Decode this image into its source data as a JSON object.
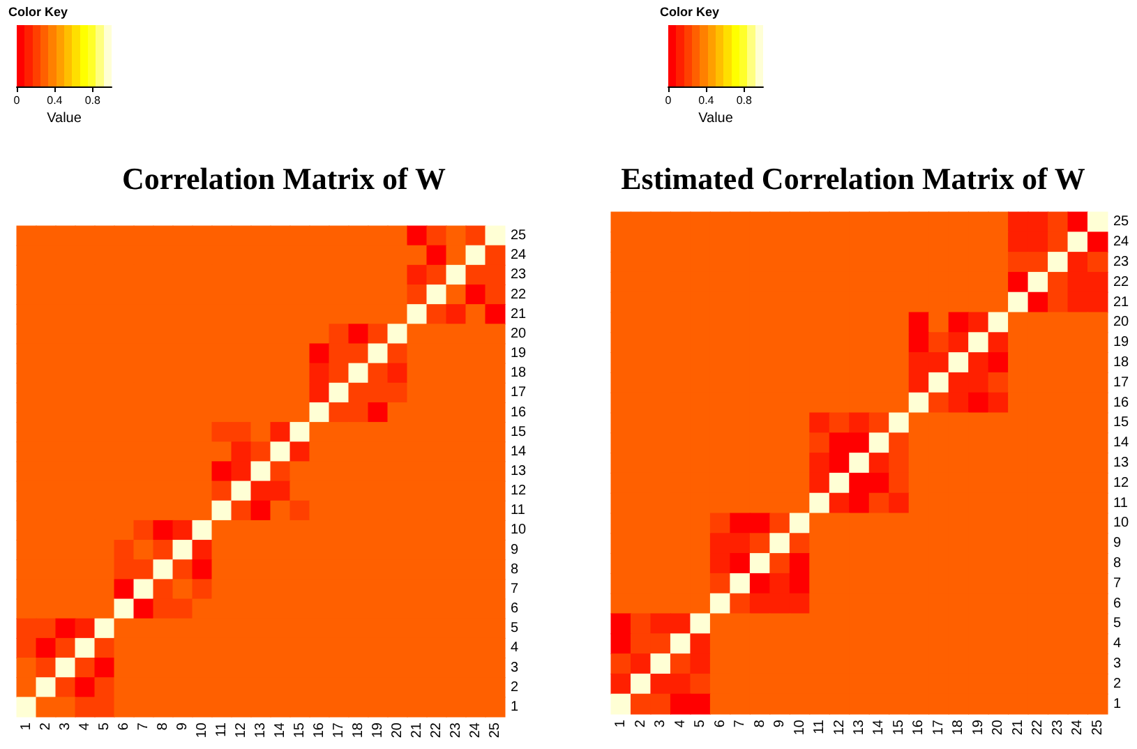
{
  "chart_data": [
    {
      "type": "heatmap",
      "title": "Correlation Matrix of W",
      "legend_title": "Color Key",
      "clabel": "Value",
      "clim": [
        0,
        1
      ],
      "cticks": [
        0,
        0.4,
        0.8
      ],
      "categories": [
        "1",
        "2",
        "3",
        "4",
        "5",
        "6",
        "7",
        "8",
        "9",
        "10",
        "11",
        "12",
        "13",
        "14",
        "15",
        "16",
        "17",
        "18",
        "19",
        "20",
        "21",
        "22",
        "23",
        "24",
        "25"
      ],
      "y_categories": [
        "25",
        "24",
        "23",
        "22",
        "21",
        "20",
        "19",
        "18",
        "17",
        "16",
        "15",
        "14",
        "13",
        "12",
        "11",
        "10",
        "9",
        "8",
        "7",
        "6",
        "5",
        "4",
        "3",
        "2",
        "1"
      ],
      "cells": [
        [
          0.3,
          0.3,
          0.3,
          0.3,
          0.3,
          0.3,
          0.3,
          0.3,
          0.3,
          0.3,
          0.3,
          0.3,
          0.3,
          0.3,
          0.3,
          0.3,
          0.3,
          0.3,
          0.3,
          0.3,
          0.04,
          0.2,
          0.3,
          0.2,
          1
        ],
        [
          0.3,
          0.3,
          0.3,
          0.3,
          0.3,
          0.3,
          0.3,
          0.3,
          0.3,
          0.3,
          0.3,
          0.3,
          0.3,
          0.3,
          0.3,
          0.3,
          0.3,
          0.3,
          0.3,
          0.3,
          0.3,
          0.04,
          0.3,
          1,
          0.2
        ],
        [
          0.3,
          0.3,
          0.3,
          0.3,
          0.3,
          0.3,
          0.3,
          0.3,
          0.3,
          0.3,
          0.3,
          0.3,
          0.3,
          0.3,
          0.3,
          0.3,
          0.3,
          0.3,
          0.3,
          0.3,
          0.12,
          0.2,
          1,
          0.2,
          0.2
        ],
        [
          0.3,
          0.3,
          0.3,
          0.3,
          0.3,
          0.3,
          0.3,
          0.3,
          0.3,
          0.3,
          0.3,
          0.3,
          0.3,
          0.3,
          0.3,
          0.3,
          0.3,
          0.3,
          0.3,
          0.3,
          0.2,
          1,
          0.3,
          0.04,
          0.2
        ],
        [
          0.3,
          0.3,
          0.3,
          0.3,
          0.3,
          0.3,
          0.3,
          0.3,
          0.3,
          0.3,
          0.3,
          0.3,
          0.3,
          0.3,
          0.3,
          0.3,
          0.3,
          0.3,
          0.3,
          0.3,
          1,
          0.2,
          0.12,
          0.3,
          0.04
        ],
        [
          0.3,
          0.3,
          0.3,
          0.3,
          0.3,
          0.3,
          0.3,
          0.3,
          0.3,
          0.3,
          0.3,
          0.3,
          0.3,
          0.3,
          0.3,
          0.3,
          0.2,
          0.04,
          0.2,
          1,
          0.3,
          0.3,
          0.3,
          0.3,
          0.3
        ],
        [
          0.3,
          0.3,
          0.3,
          0.3,
          0.3,
          0.3,
          0.3,
          0.3,
          0.3,
          0.3,
          0.3,
          0.3,
          0.3,
          0.3,
          0.3,
          0.04,
          0.2,
          0.2,
          1,
          0.2,
          0.3,
          0.3,
          0.3,
          0.3,
          0.3
        ],
        [
          0.3,
          0.3,
          0.3,
          0.3,
          0.3,
          0.3,
          0.3,
          0.3,
          0.3,
          0.3,
          0.3,
          0.3,
          0.3,
          0.3,
          0.3,
          0.12,
          0.2,
          1,
          0.2,
          0.12,
          0.3,
          0.3,
          0.3,
          0.3,
          0.3
        ],
        [
          0.3,
          0.3,
          0.3,
          0.3,
          0.3,
          0.3,
          0.3,
          0.3,
          0.3,
          0.3,
          0.3,
          0.3,
          0.3,
          0.3,
          0.3,
          0.12,
          1,
          0.2,
          0.2,
          0.2,
          0.3,
          0.3,
          0.3,
          0.3,
          0.3
        ],
        [
          0.3,
          0.3,
          0.3,
          0.3,
          0.3,
          0.3,
          0.3,
          0.3,
          0.3,
          0.3,
          0.3,
          0.3,
          0.3,
          0.3,
          0.3,
          1,
          0.2,
          0.2,
          0.04,
          0.3,
          0.3,
          0.3,
          0.3,
          0.3,
          0.3
        ],
        [
          0.3,
          0.3,
          0.3,
          0.3,
          0.3,
          0.3,
          0.3,
          0.3,
          0.3,
          0.3,
          0.2,
          0.2,
          0.3,
          0.12,
          1,
          0.3,
          0.3,
          0.3,
          0.3,
          0.3,
          0.3,
          0.3,
          0.3,
          0.3,
          0.3
        ],
        [
          0.3,
          0.3,
          0.3,
          0.3,
          0.3,
          0.3,
          0.3,
          0.3,
          0.3,
          0.3,
          0.3,
          0.12,
          0.2,
          1,
          0.12,
          0.3,
          0.3,
          0.3,
          0.3,
          0.3,
          0.3,
          0.3,
          0.3,
          0.3,
          0.3
        ],
        [
          0.3,
          0.3,
          0.3,
          0.3,
          0.3,
          0.3,
          0.3,
          0.3,
          0.3,
          0.3,
          0.04,
          0.12,
          1,
          0.2,
          0.3,
          0.3,
          0.3,
          0.3,
          0.3,
          0.3,
          0.3,
          0.3,
          0.3,
          0.3,
          0.3
        ],
        [
          0.3,
          0.3,
          0.3,
          0.3,
          0.3,
          0.3,
          0.3,
          0.3,
          0.3,
          0.3,
          0.2,
          1,
          0.12,
          0.12,
          0.3,
          0.3,
          0.3,
          0.3,
          0.3,
          0.3,
          0.3,
          0.3,
          0.3,
          0.3,
          0.3
        ],
        [
          0.3,
          0.3,
          0.3,
          0.3,
          0.3,
          0.3,
          0.3,
          0.3,
          0.3,
          0.3,
          1,
          0.2,
          0.04,
          0.3,
          0.2,
          0.3,
          0.3,
          0.3,
          0.3,
          0.3,
          0.3,
          0.3,
          0.3,
          0.3,
          0.3
        ],
        [
          0.3,
          0.3,
          0.3,
          0.3,
          0.3,
          0.3,
          0.2,
          0.04,
          0.12,
          1,
          0.3,
          0.3,
          0.3,
          0.3,
          0.3,
          0.3,
          0.3,
          0.3,
          0.3,
          0.3,
          0.3,
          0.3,
          0.3,
          0.3,
          0.3
        ],
        [
          0.3,
          0.3,
          0.3,
          0.3,
          0.3,
          0.2,
          0.3,
          0.2,
          1,
          0.12,
          0.3,
          0.3,
          0.3,
          0.3,
          0.3,
          0.3,
          0.3,
          0.3,
          0.3,
          0.3,
          0.3,
          0.3,
          0.3,
          0.3,
          0.3
        ],
        [
          0.3,
          0.3,
          0.3,
          0.3,
          0.3,
          0.2,
          0.2,
          1,
          0.2,
          0.04,
          0.3,
          0.3,
          0.3,
          0.3,
          0.3,
          0.3,
          0.3,
          0.3,
          0.3,
          0.3,
          0.3,
          0.3,
          0.3,
          0.3,
          0.3
        ],
        [
          0.3,
          0.3,
          0.3,
          0.3,
          0.3,
          0.04,
          1,
          0.2,
          0.3,
          0.2,
          0.3,
          0.3,
          0.3,
          0.3,
          0.3,
          0.3,
          0.3,
          0.3,
          0.3,
          0.3,
          0.3,
          0.3,
          0.3,
          0.3,
          0.3
        ],
        [
          0.3,
          0.3,
          0.3,
          0.3,
          0.3,
          1,
          0.04,
          0.2,
          0.2,
          0.3,
          0.3,
          0.3,
          0.3,
          0.3,
          0.3,
          0.3,
          0.3,
          0.3,
          0.3,
          0.3,
          0.3,
          0.3,
          0.3,
          0.3,
          0.3
        ],
        [
          0.2,
          0.2,
          0.04,
          0.12,
          1,
          0.3,
          0.3,
          0.3,
          0.3,
          0.3,
          0.3,
          0.3,
          0.3,
          0.3,
          0.3,
          0.3,
          0.3,
          0.3,
          0.3,
          0.3,
          0.3,
          0.3,
          0.3,
          0.3,
          0.3
        ],
        [
          0.2,
          0.04,
          0.2,
          1,
          0.2,
          0.3,
          0.3,
          0.3,
          0.3,
          0.3,
          0.3,
          0.3,
          0.3,
          0.3,
          0.3,
          0.3,
          0.3,
          0.3,
          0.3,
          0.3,
          0.3,
          0.3,
          0.3,
          0.3,
          0.3
        ],
        [
          0.3,
          0.2,
          1,
          0.2,
          0.04,
          0.3,
          0.3,
          0.3,
          0.3,
          0.3,
          0.3,
          0.3,
          0.3,
          0.3,
          0.3,
          0.3,
          0.3,
          0.3,
          0.3,
          0.3,
          0.3,
          0.3,
          0.3,
          0.3,
          0.3
        ],
        [
          0.3,
          1,
          0.2,
          0.04,
          0.2,
          0.3,
          0.3,
          0.3,
          0.3,
          0.3,
          0.3,
          0.3,
          0.3,
          0.3,
          0.3,
          0.3,
          0.3,
          0.3,
          0.3,
          0.3,
          0.3,
          0.3,
          0.3,
          0.3,
          0.3
        ],
        [
          1,
          0.3,
          0.3,
          0.2,
          0.2,
          0.3,
          0.3,
          0.3,
          0.3,
          0.3,
          0.3,
          0.3,
          0.3,
          0.3,
          0.3,
          0.3,
          0.3,
          0.3,
          0.3,
          0.3,
          0.3,
          0.3,
          0.3,
          0.3,
          0.3
        ]
      ]
    },
    {
      "type": "heatmap",
      "title": "Estimated Correlation Matrix of W",
      "legend_title": "Color Key",
      "clabel": "Value",
      "clim": [
        0,
        1
      ],
      "cticks": [
        0,
        0.4,
        0.8
      ],
      "categories": [
        "1",
        "2",
        "3",
        "4",
        "5",
        "6",
        "7",
        "8",
        "9",
        "10",
        "11",
        "12",
        "13",
        "14",
        "15",
        "16",
        "17",
        "18",
        "19",
        "20",
        "21",
        "22",
        "23",
        "24",
        "25"
      ],
      "y_categories": [
        "25",
        "24",
        "23",
        "22",
        "21",
        "20",
        "19",
        "18",
        "17",
        "16",
        "15",
        "14",
        "13",
        "12",
        "11",
        "10",
        "9",
        "8",
        "7",
        "6",
        "5",
        "4",
        "3",
        "2",
        "1"
      ],
      "cells": [
        [
          0.3,
          0.3,
          0.3,
          0.3,
          0.3,
          0.3,
          0.3,
          0.3,
          0.3,
          0.3,
          0.3,
          0.3,
          0.3,
          0.3,
          0.3,
          0.3,
          0.3,
          0.3,
          0.3,
          0.3,
          0.12,
          0.12,
          0.2,
          0.04,
          1
        ],
        [
          0.3,
          0.3,
          0.3,
          0.3,
          0.3,
          0.3,
          0.3,
          0.3,
          0.3,
          0.3,
          0.3,
          0.3,
          0.3,
          0.3,
          0.3,
          0.3,
          0.3,
          0.3,
          0.3,
          0.3,
          0.12,
          0.12,
          0.2,
          1,
          0.04
        ],
        [
          0.3,
          0.3,
          0.3,
          0.3,
          0.3,
          0.3,
          0.3,
          0.3,
          0.3,
          0.3,
          0.3,
          0.3,
          0.3,
          0.3,
          0.3,
          0.3,
          0.3,
          0.3,
          0.3,
          0.3,
          0.2,
          0.2,
          1,
          0.12,
          0.2
        ],
        [
          0.3,
          0.3,
          0.3,
          0.3,
          0.3,
          0.3,
          0.3,
          0.3,
          0.3,
          0.3,
          0.3,
          0.3,
          0.3,
          0.3,
          0.3,
          0.3,
          0.3,
          0.3,
          0.3,
          0.3,
          0.04,
          1,
          0.2,
          0.12,
          0.12
        ],
        [
          0.3,
          0.3,
          0.3,
          0.3,
          0.3,
          0.3,
          0.3,
          0.3,
          0.3,
          0.3,
          0.3,
          0.3,
          0.3,
          0.3,
          0.3,
          0.3,
          0.3,
          0.3,
          0.3,
          0.3,
          1,
          0.04,
          0.2,
          0.12,
          0.12
        ],
        [
          0.3,
          0.3,
          0.3,
          0.3,
          0.3,
          0.3,
          0.3,
          0.3,
          0.3,
          0.3,
          0.3,
          0.3,
          0.3,
          0.3,
          0.3,
          0.04,
          0.3,
          0.04,
          0.12,
          1,
          0.3,
          0.3,
          0.3,
          0.3,
          0.3
        ],
        [
          0.3,
          0.3,
          0.3,
          0.3,
          0.3,
          0.3,
          0.3,
          0.3,
          0.3,
          0.3,
          0.3,
          0.3,
          0.3,
          0.3,
          0.3,
          0.04,
          0.2,
          0.12,
          1,
          0.12,
          0.3,
          0.3,
          0.3,
          0.3,
          0.3
        ],
        [
          0.3,
          0.3,
          0.3,
          0.3,
          0.3,
          0.3,
          0.3,
          0.3,
          0.3,
          0.3,
          0.3,
          0.3,
          0.3,
          0.3,
          0.3,
          0.12,
          0.12,
          1,
          0.12,
          0.04,
          0.3,
          0.3,
          0.3,
          0.3,
          0.3
        ],
        [
          0.3,
          0.3,
          0.3,
          0.3,
          0.3,
          0.3,
          0.3,
          0.3,
          0.3,
          0.3,
          0.3,
          0.3,
          0.3,
          0.3,
          0.3,
          0.12,
          1,
          0.12,
          0.12,
          0.2,
          0.3,
          0.3,
          0.3,
          0.3,
          0.3
        ],
        [
          0.3,
          0.3,
          0.3,
          0.3,
          0.3,
          0.3,
          0.3,
          0.3,
          0.3,
          0.3,
          0.3,
          0.3,
          0.3,
          0.3,
          0.3,
          1,
          0.2,
          0.12,
          0.04,
          0.12,
          0.3,
          0.3,
          0.3,
          0.3,
          0.3
        ],
        [
          0.3,
          0.3,
          0.3,
          0.3,
          0.3,
          0.3,
          0.3,
          0.3,
          0.3,
          0.3,
          0.12,
          0.2,
          0.12,
          0.2,
          1,
          0.3,
          0.3,
          0.3,
          0.3,
          0.3,
          0.3,
          0.3,
          0.3,
          0.3,
          0.3
        ],
        [
          0.3,
          0.3,
          0.3,
          0.3,
          0.3,
          0.3,
          0.3,
          0.3,
          0.3,
          0.3,
          0.2,
          0.04,
          0.04,
          1,
          0.2,
          0.3,
          0.3,
          0.3,
          0.3,
          0.3,
          0.3,
          0.3,
          0.3,
          0.3,
          0.3
        ],
        [
          0.3,
          0.3,
          0.3,
          0.3,
          0.3,
          0.3,
          0.3,
          0.3,
          0.3,
          0.3,
          0.12,
          0.04,
          1,
          0.12,
          0.2,
          0.3,
          0.3,
          0.3,
          0.3,
          0.3,
          0.3,
          0.3,
          0.3,
          0.3,
          0.3
        ],
        [
          0.3,
          0.3,
          0.3,
          0.3,
          0.3,
          0.3,
          0.3,
          0.3,
          0.3,
          0.3,
          0.12,
          1,
          0.04,
          0.04,
          0.2,
          0.3,
          0.3,
          0.3,
          0.3,
          0.3,
          0.3,
          0.3,
          0.3,
          0.3,
          0.3
        ],
        [
          0.3,
          0.3,
          0.3,
          0.3,
          0.3,
          0.3,
          0.3,
          0.3,
          0.3,
          0.3,
          1,
          0.12,
          0.04,
          0.2,
          0.12,
          0.3,
          0.3,
          0.3,
          0.3,
          0.3,
          0.3,
          0.3,
          0.3,
          0.3,
          0.3
        ],
        [
          0.3,
          0.3,
          0.3,
          0.3,
          0.3,
          0.2,
          0.04,
          0.04,
          0.2,
          1,
          0.3,
          0.3,
          0.3,
          0.3,
          0.3,
          0.3,
          0.3,
          0.3,
          0.3,
          0.3,
          0.3,
          0.3,
          0.3,
          0.3,
          0.3
        ],
        [
          0.3,
          0.3,
          0.3,
          0.3,
          0.3,
          0.12,
          0.12,
          0.2,
          1,
          0.2,
          0.3,
          0.3,
          0.3,
          0.3,
          0.3,
          0.3,
          0.3,
          0.3,
          0.3,
          0.3,
          0.3,
          0.3,
          0.3,
          0.3,
          0.3
        ],
        [
          0.3,
          0.3,
          0.3,
          0.3,
          0.3,
          0.12,
          0.04,
          1,
          0.2,
          0.04,
          0.3,
          0.3,
          0.3,
          0.3,
          0.3,
          0.3,
          0.3,
          0.3,
          0.3,
          0.3,
          0.3,
          0.3,
          0.3,
          0.3,
          0.3
        ],
        [
          0.3,
          0.3,
          0.3,
          0.3,
          0.3,
          0.2,
          1,
          0.04,
          0.12,
          0.04,
          0.3,
          0.3,
          0.3,
          0.3,
          0.3,
          0.3,
          0.3,
          0.3,
          0.3,
          0.3,
          0.3,
          0.3,
          0.3,
          0.3,
          0.3
        ],
        [
          0.3,
          0.3,
          0.3,
          0.3,
          0.3,
          1,
          0.2,
          0.12,
          0.12,
          0.12,
          0.3,
          0.3,
          0.3,
          0.3,
          0.3,
          0.3,
          0.3,
          0.3,
          0.3,
          0.3,
          0.3,
          0.3,
          0.3,
          0.3,
          0.3
        ],
        [
          0.04,
          0.2,
          0.12,
          0.12,
          1,
          0.3,
          0.3,
          0.3,
          0.3,
          0.3,
          0.3,
          0.3,
          0.3,
          0.3,
          0.3,
          0.3,
          0.3,
          0.3,
          0.3,
          0.3,
          0.3,
          0.3,
          0.3,
          0.3,
          0.3
        ],
        [
          0.04,
          0.2,
          0.2,
          1,
          0.12,
          0.3,
          0.3,
          0.3,
          0.3,
          0.3,
          0.3,
          0.3,
          0.3,
          0.3,
          0.3,
          0.3,
          0.3,
          0.3,
          0.3,
          0.3,
          0.3,
          0.3,
          0.3,
          0.3,
          0.3
        ],
        [
          0.2,
          0.12,
          1,
          0.2,
          0.12,
          0.3,
          0.3,
          0.3,
          0.3,
          0.3,
          0.3,
          0.3,
          0.3,
          0.3,
          0.3,
          0.3,
          0.3,
          0.3,
          0.3,
          0.3,
          0.3,
          0.3,
          0.3,
          0.3,
          0.3
        ],
        [
          0.12,
          1,
          0.12,
          0.12,
          0.2,
          0.3,
          0.3,
          0.3,
          0.3,
          0.3,
          0.3,
          0.3,
          0.3,
          0.3,
          0.3,
          0.3,
          0.3,
          0.3,
          0.3,
          0.3,
          0.3,
          0.3,
          0.3,
          0.3,
          0.3
        ],
        [
          1,
          0.2,
          0.2,
          0.04,
          0.04,
          0.3,
          0.3,
          0.3,
          0.3,
          0.3,
          0.3,
          0.3,
          0.3,
          0.3,
          0.3,
          0.3,
          0.3,
          0.3,
          0.3,
          0.3,
          0.3,
          0.3,
          0.3,
          0.3,
          0.3
        ]
      ]
    }
  ]
}
